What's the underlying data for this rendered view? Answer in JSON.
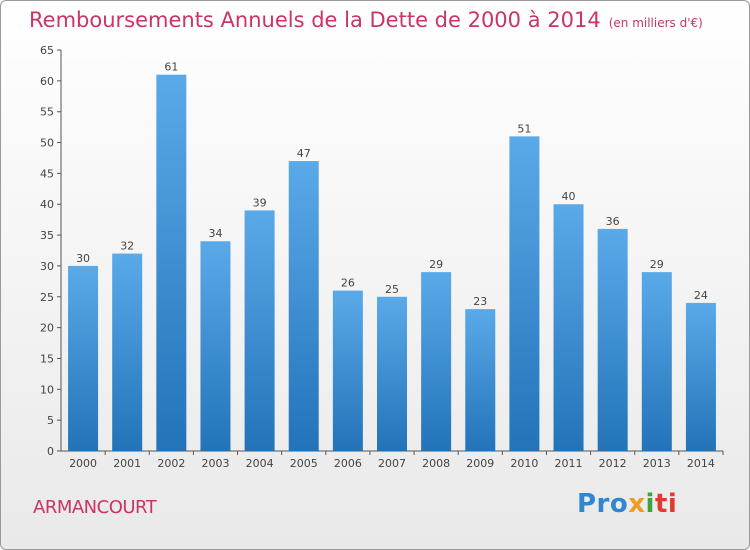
{
  "title": "Remboursements Annuels de la Dette de 2000 à 2014",
  "title_unit": "(en milliers d'€)",
  "commune": "ARMANCOURT",
  "logo": {
    "parts": [
      "Pro",
      "x",
      "i",
      "ti"
    ]
  },
  "colors": {
    "title": "#cc3366",
    "bar_light": "#5aaaea",
    "bar_dark": "#2273b8",
    "axis": "#555555"
  },
  "chart_data": {
    "type": "bar",
    "categories": [
      "2000",
      "2001",
      "2002",
      "2003",
      "2004",
      "2005",
      "2006",
      "2007",
      "2008",
      "2009",
      "2010",
      "2011",
      "2012",
      "2013",
      "2014"
    ],
    "values": [
      30,
      32,
      61,
      34,
      39,
      47,
      26,
      25,
      29,
      23,
      51,
      40,
      36,
      29,
      24
    ],
    "ylim": [
      0,
      65
    ],
    "yticks": [
      0,
      5,
      10,
      15,
      20,
      25,
      30,
      35,
      40,
      45,
      50,
      55,
      60,
      65
    ],
    "grid": false,
    "xlabel": "",
    "ylabel": ""
  }
}
